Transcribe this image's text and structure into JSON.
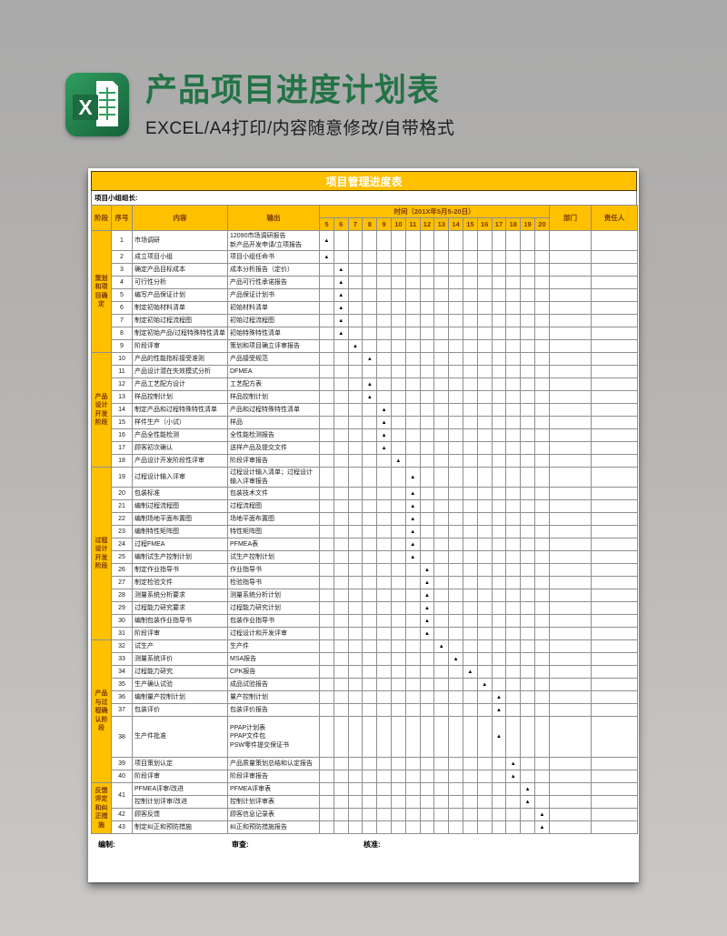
{
  "page": {
    "header": {
      "title": "产品项目进度计划表",
      "subtitle": "EXCEL/A4打印/内容随意修改/自带格式",
      "icon": "excel-icon"
    },
    "colors": {
      "accent": "#FFC000",
      "header_text": "#7B3C00",
      "title_green": "#237347",
      "marker_color": "#000000"
    }
  },
  "sheet": {
    "table_title": "项目管理进度表",
    "leader_label": "项目小组组长:",
    "marker": "▲",
    "headers": {
      "stage": "阶段",
      "no": "序号",
      "content": "内容",
      "output": "输出",
      "time_group": "时间（201X年5月5-20日）",
      "dept": "部门",
      "owner": "责任人"
    },
    "days": [
      "5",
      "6",
      "7",
      "8",
      "9",
      "10",
      "11",
      "12",
      "13",
      "14",
      "15",
      "16",
      "17",
      "18",
      "19",
      "20"
    ],
    "stages": [
      {
        "label": "策划和项目确定",
        "span": 9
      },
      {
        "label": "产品设计开发阶段",
        "span": 9
      },
      {
        "label": "过程设计开发阶段",
        "span": 13
      },
      {
        "label": "产品与过程确认阶段",
        "span": 9
      },
      {
        "label": "反馈评定和纠正措施",
        "span": 4
      }
    ],
    "rows": [
      {
        "n": "1",
        "c": "市场调研",
        "o": "12090市场调研报告\n新产品开发申请/立项报告",
        "d": "5",
        "h": 2,
        "stage": 0
      },
      {
        "n": "2",
        "c": "成立项目小组",
        "o": "项目小组任命书",
        "d": "5"
      },
      {
        "n": "3",
        "c": "确定产品目标成本",
        "o": "成本分析报告（定价）",
        "d": "6"
      },
      {
        "n": "4",
        "c": "可行性分析",
        "o": "产品可行性承诺报告",
        "d": "6"
      },
      {
        "n": "5",
        "c": "编写产品保证计划",
        "o": "产品保证计划书",
        "d": "6"
      },
      {
        "n": "6",
        "c": "制定初始材料清单",
        "o": "初始材料清单",
        "d": "6"
      },
      {
        "n": "7",
        "c": "制定初始过程流程图",
        "o": "初始过程流程图",
        "d": "6"
      },
      {
        "n": "8",
        "c": "制定初始产品/过程特殊特性清单",
        "o": "初始特殊特性清单",
        "d": "6"
      },
      {
        "n": "9",
        "c": "阶段评审",
        "o": "策划和项目确立评审报告",
        "d": "7"
      },
      {
        "n": "10",
        "c": "产品的性能指标接受准则",
        "o": "产品接受规范",
        "d": "8",
        "stage": 1
      },
      {
        "n": "11",
        "c": "产品设计潜在失效模式分析",
        "o": "DFMEA",
        "d": null
      },
      {
        "n": "12",
        "c": "产品工艺配方设计",
        "o": "工艺配方表",
        "d": "8"
      },
      {
        "n": "13",
        "c": "样品控制计划",
        "o": "样品控制计划",
        "d": "8"
      },
      {
        "n": "14",
        "c": "制定产品和过程特殊特性清单",
        "o": "产品和过程特殊特性清单",
        "d": "9"
      },
      {
        "n": "15",
        "c": "样件生产（小试）",
        "o": "样品",
        "d": "9"
      },
      {
        "n": "16",
        "c": "产品全性能检测",
        "o": "全性能检测报告",
        "d": "9"
      },
      {
        "n": "17",
        "c": "顾客初次确认",
        "o": "送样产品及提交文件",
        "d": "9"
      },
      {
        "n": "18",
        "c": "产品设计开发阶段性评审",
        "o": "阶段评审报告",
        "d": "10"
      },
      {
        "n": "19",
        "c": "过程设计输入评审",
        "o": "过程设计输入清单；过程设计输入评审报告",
        "d": "11",
        "h": 2,
        "stage": 2
      },
      {
        "n": "20",
        "c": "包装标准",
        "o": "包装技术文件",
        "d": "11"
      },
      {
        "n": "21",
        "c": "编制过程流程图",
        "o": "过程流程图",
        "d": "11"
      },
      {
        "n": "22",
        "c": "编制场地平面布置图",
        "o": "场地平面布置图",
        "d": "11"
      },
      {
        "n": "23",
        "c": "编制特性矩阵图",
        "o": "特性矩阵图",
        "d": "11"
      },
      {
        "n": "24",
        "c": "过程FMEA",
        "o": "PFMEA表",
        "d": "11"
      },
      {
        "n": "25",
        "c": "编制试生产控制计划",
        "o": "试生产控制计划",
        "d": "11"
      },
      {
        "n": "26",
        "c": "制定作业指导书",
        "o": "作业指导书",
        "d": "12"
      },
      {
        "n": "27",
        "c": "制定检验文件",
        "o": "检验指导书",
        "d": "12"
      },
      {
        "n": "28",
        "c": "测量系统分析要求",
        "o": "测量系统分析计划",
        "d": "12"
      },
      {
        "n": "29",
        "c": "过程能力研究要求",
        "o": "过程能力研究计划",
        "d": "12"
      },
      {
        "n": "30",
        "c": "编制包装作业指导书",
        "o": "包装作业指导书",
        "d": "12"
      },
      {
        "n": "31",
        "c": "阶段评审",
        "o": "过程设计和开发评审",
        "d": "12"
      },
      {
        "n": "32",
        "c": "试生产",
        "o": "生产件",
        "d": "13",
        "stage": 3
      },
      {
        "n": "33",
        "c": "测量系统评价",
        "o": "MSA报告",
        "d": "14"
      },
      {
        "n": "34",
        "c": "过程能力研究",
        "o": "CPK报告",
        "d": "15"
      },
      {
        "n": "35",
        "c": "生产确认试验",
        "o": "成品试验报告",
        "d": "16"
      },
      {
        "n": "36",
        "c": "编制量产控制计划",
        "o": "量产控制计划",
        "d": "17"
      },
      {
        "n": "37",
        "c": "包装评价",
        "o": "包装评价报告",
        "d": "17"
      },
      {
        "n": "38",
        "c": "生产件批准",
        "o": "PPAP计划表\nPPAP文件包\nPSW零件提交保证书",
        "d": "17",
        "h": 3
      },
      {
        "n": "39",
        "c": "项目策划认定",
        "o": "产品质量策划总结和认定报告",
        "d": "18"
      },
      {
        "n": "40",
        "c": "阶段评审",
        "o": "阶段评审报告",
        "d": "18"
      },
      {
        "n": "41",
        "c": "PFMEA评审/改进",
        "o": "PFMEA评审表",
        "d": "19",
        "nspan": 2,
        "stage": 4
      },
      {
        "n": "",
        "c": "控制计划评审/改进",
        "o": "控制计划评审表",
        "d": "19",
        "nskip": true
      },
      {
        "n": "42",
        "c": "顾客反馈",
        "o": "顾客信息记录表",
        "d": "20"
      },
      {
        "n": "43",
        "c": "制定纠正和预防措施",
        "o": "纠正和预防措施报告",
        "d": "20"
      }
    ],
    "footer": {
      "prepared": "编制:",
      "reviewed": "审查:",
      "approved": "核准:"
    }
  }
}
